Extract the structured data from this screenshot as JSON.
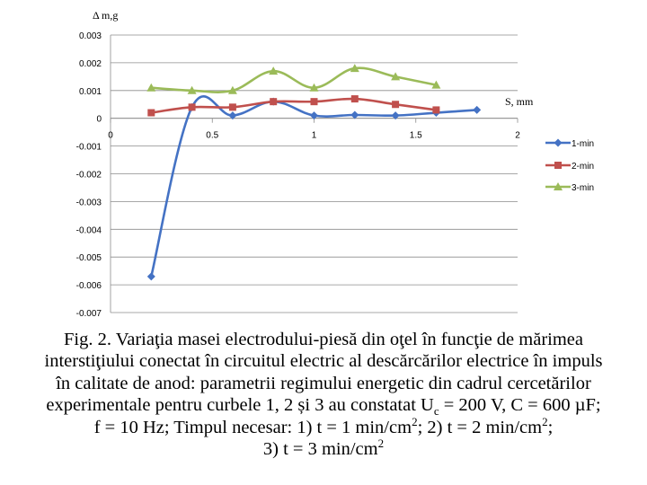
{
  "chart_data": {
    "type": "line",
    "ylabel": "Δ m,g",
    "xlabel": "S, mm",
    "xlim": [
      0,
      2
    ],
    "ylim": [
      -0.007,
      0.003
    ],
    "xticks": [
      "0",
      "0.5",
      "1",
      "1.5",
      "2"
    ],
    "yticks": [
      "0.003",
      "0.002",
      "0.001",
      "0",
      "-0.001",
      "-0.002",
      "-0.003",
      "-0.004",
      "-0.005",
      "-0.006",
      "-0.007"
    ],
    "grid": "horizontal",
    "legend_position": "right",
    "series": [
      {
        "name": "1-min",
        "color": "#4472C4",
        "marker": "diamond",
        "x": [
          0.2,
          0.4,
          0.6,
          0.8,
          1.0,
          1.2,
          1.4,
          1.6,
          1.8
        ],
        "y": [
          -0.0057,
          0.0004,
          0.0001,
          0.0006,
          0.0001,
          0.00012,
          0.0001,
          0.0002,
          0.0003
        ]
      },
      {
        "name": "2-min",
        "color": "#C0504D",
        "marker": "square",
        "x": [
          0.2,
          0.4,
          0.6,
          0.8,
          1.0,
          1.2,
          1.4,
          1.6
        ],
        "y": [
          0.0002,
          0.0004,
          0.0004,
          0.0006,
          0.0006,
          0.0007,
          0.0005,
          0.0003
        ]
      },
      {
        "name": "3-min",
        "color": "#9BBB59",
        "marker": "triangle",
        "x": [
          0.2,
          0.4,
          0.6,
          0.8,
          1.0,
          1.2,
          1.4,
          1.6
        ],
        "y": [
          0.0011,
          0.001,
          0.001,
          0.0017,
          0.0011,
          0.0018,
          0.0015,
          0.0012
        ]
      }
    ]
  },
  "caption": {
    "line1": "Fig. 2. Variaţia masei electrodului-piesă din oţel în funcţie de mărimea",
    "line2": "interstiţiului conectat în circuitul electric al descărcărilor electrice în impuls",
    "line3": "în calitate de anod: parametrii regimului energetic din cadrul cercetărilor",
    "line4_a": "experimentale pentru curbele 1, 2 și 3 au constatat U",
    "line4_sub": "c",
    "line4_b": " = 200 V, C = 600 µF;",
    "line5_a": "f = 10 Hz; Timpul necesar: 1) t = 1 min/cm",
    "line5_sup1": "2",
    "line5_b": "; 2) t = 2 min/cm",
    "line5_sup2": "2",
    "line5_c": ";",
    "line6_a": "3) t = 3 min/cm",
    "line6_sup": "2"
  }
}
